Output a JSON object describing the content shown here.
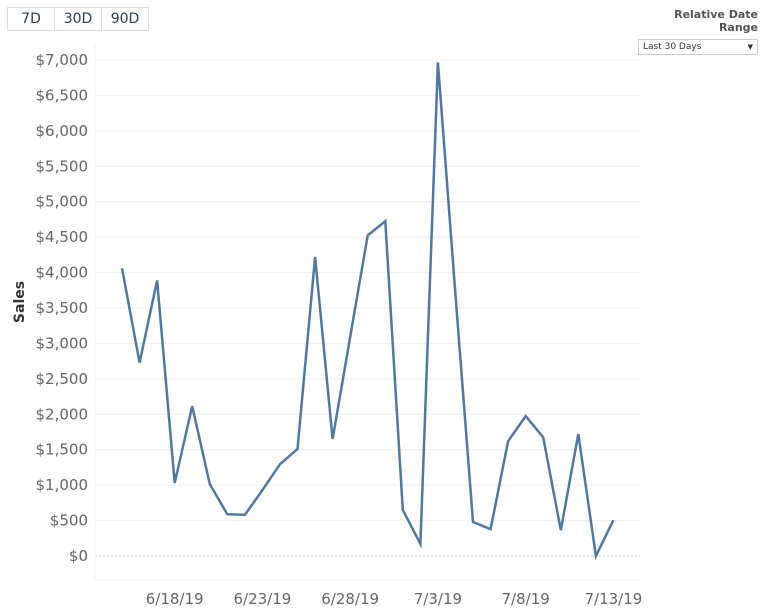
{
  "buttons": [
    {
      "label": "7D"
    },
    {
      "label": "30D"
    },
    {
      "label": "90D"
    }
  ],
  "filter": {
    "title": "Relative Date Range",
    "value": "Last 30 Days",
    "icon": "dropdown-arrow-icon"
  },
  "chart_data": {
    "type": "line",
    "ylabel": "Sales",
    "xlabel": "",
    "ylim": [
      0,
      7000
    ],
    "yticks": [
      0,
      500,
      1000,
      1500,
      2000,
      2500,
      3000,
      3500,
      4000,
      4500,
      5000,
      5500,
      6000,
      6500,
      7000
    ],
    "ytick_labels": [
      "$0",
      "$500",
      "$1,000",
      "$1,500",
      "$2,000",
      "$2,500",
      "$3,000",
      "$3,500",
      "$4,000",
      "$4,500",
      "$5,000",
      "$5,500",
      "$6,000",
      "$6,500",
      "$7,000"
    ],
    "xtick_labels": [
      "6/18/19",
      "6/23/19",
      "6/28/19",
      "7/3/19",
      "7/8/19",
      "7/13/19"
    ],
    "grid": true,
    "color": "#4e79a7",
    "x": [
      "6/15/19",
      "6/16/19",
      "6/17/19",
      "6/18/19",
      "6/19/19",
      "6/20/19",
      "6/21/19",
      "6/22/19",
      "6/23/19",
      "6/24/19",
      "6/25/19",
      "6/26/19",
      "6/27/19",
      "6/28/19",
      "6/29/19",
      "6/30/19",
      "7/1/19",
      "7/2/19",
      "7/3/19",
      "7/4/19",
      "7/5/19",
      "7/6/19",
      "7/7/19",
      "7/8/19",
      "7/9/19",
      "7/10/19",
      "7/11/19",
      "7/12/19",
      "7/13/19"
    ],
    "values": [
      4060,
      2730,
      3890,
      1030,
      2115,
      1015,
      590,
      580,
      930,
      1295,
      1510,
      4220,
      1650,
      3085,
      4525,
      4725,
      650,
      170,
      6965,
      3700,
      480,
      380,
      1620,
      1975,
      1675,
      365,
      1720,
      0,
      505
    ]
  }
}
